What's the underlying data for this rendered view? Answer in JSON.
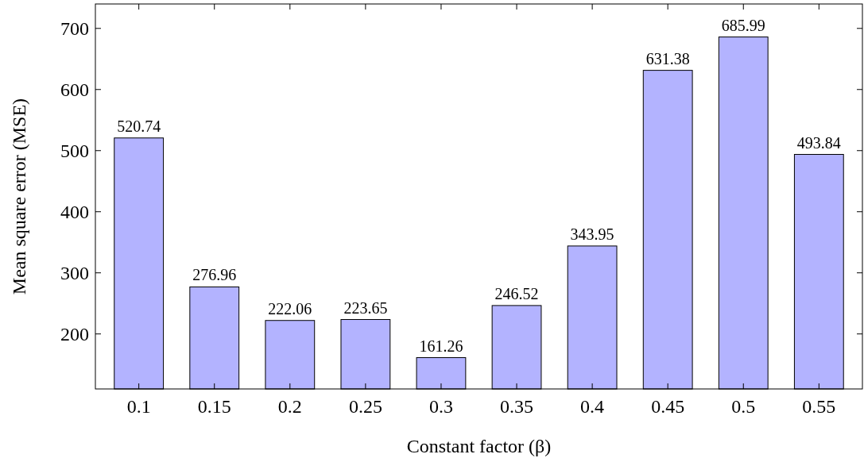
{
  "chart_data": {
    "type": "bar",
    "xlabel": "Constant factor (β)",
    "ylabel": "Mean square error (MSE)",
    "categories": [
      "0.1",
      "0.15",
      "0.2",
      "0.25",
      "0.3",
      "0.35",
      "0.4",
      "0.45",
      "0.5",
      "0.55"
    ],
    "values": [
      520.74,
      276.96,
      222.06,
      223.65,
      161.26,
      246.52,
      343.95,
      631.38,
      685.99,
      493.84
    ],
    "color": "#b3b3ff",
    "ylim": [
      110,
      740
    ],
    "yticks": [
      200,
      300,
      400,
      500,
      600,
      700
    ],
    "data_labels": true,
    "grid": false
  }
}
